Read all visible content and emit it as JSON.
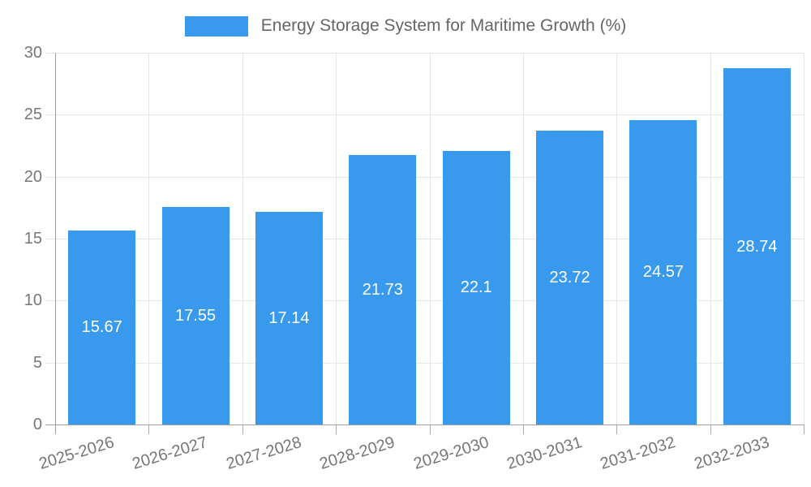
{
  "chart_data": {
    "type": "bar",
    "title": "Energy Storage System for Maritime Growth (%)",
    "legend": {
      "position": "top",
      "label": "Energy Storage System for Maritime Growth (%)"
    },
    "categories": [
      "2025-2026",
      "2026-2027",
      "2027-2028",
      "2028-2029",
      "2029-2030",
      "2030-2031",
      "2031-2032",
      "2032-2033"
    ],
    "series": [
      {
        "name": "Energy Storage System for Maritime Growth (%)",
        "values": [
          15.67,
          17.55,
          17.14,
          21.73,
          22.1,
          23.72,
          24.57,
          28.74
        ],
        "value_labels": [
          "15.67",
          "17.55",
          "17.14",
          "21.73",
          "22.1",
          "23.72",
          "24.57",
          "28.74"
        ]
      }
    ],
    "xlabel": "",
    "ylabel": "",
    "ylim": [
      0,
      30
    ],
    "yticks": [
      0,
      5,
      10,
      15,
      20,
      25,
      30
    ],
    "grid": true,
    "colors": {
      "bar": "#3999ED",
      "bar_label": "#FFFFFF",
      "grid": "#E6E6E6",
      "axis": "#9E9E9E",
      "sub_tick": "#ABABAB",
      "tick_label": "#777777",
      "title": "#666666",
      "background": "#FFFFFF"
    }
  }
}
